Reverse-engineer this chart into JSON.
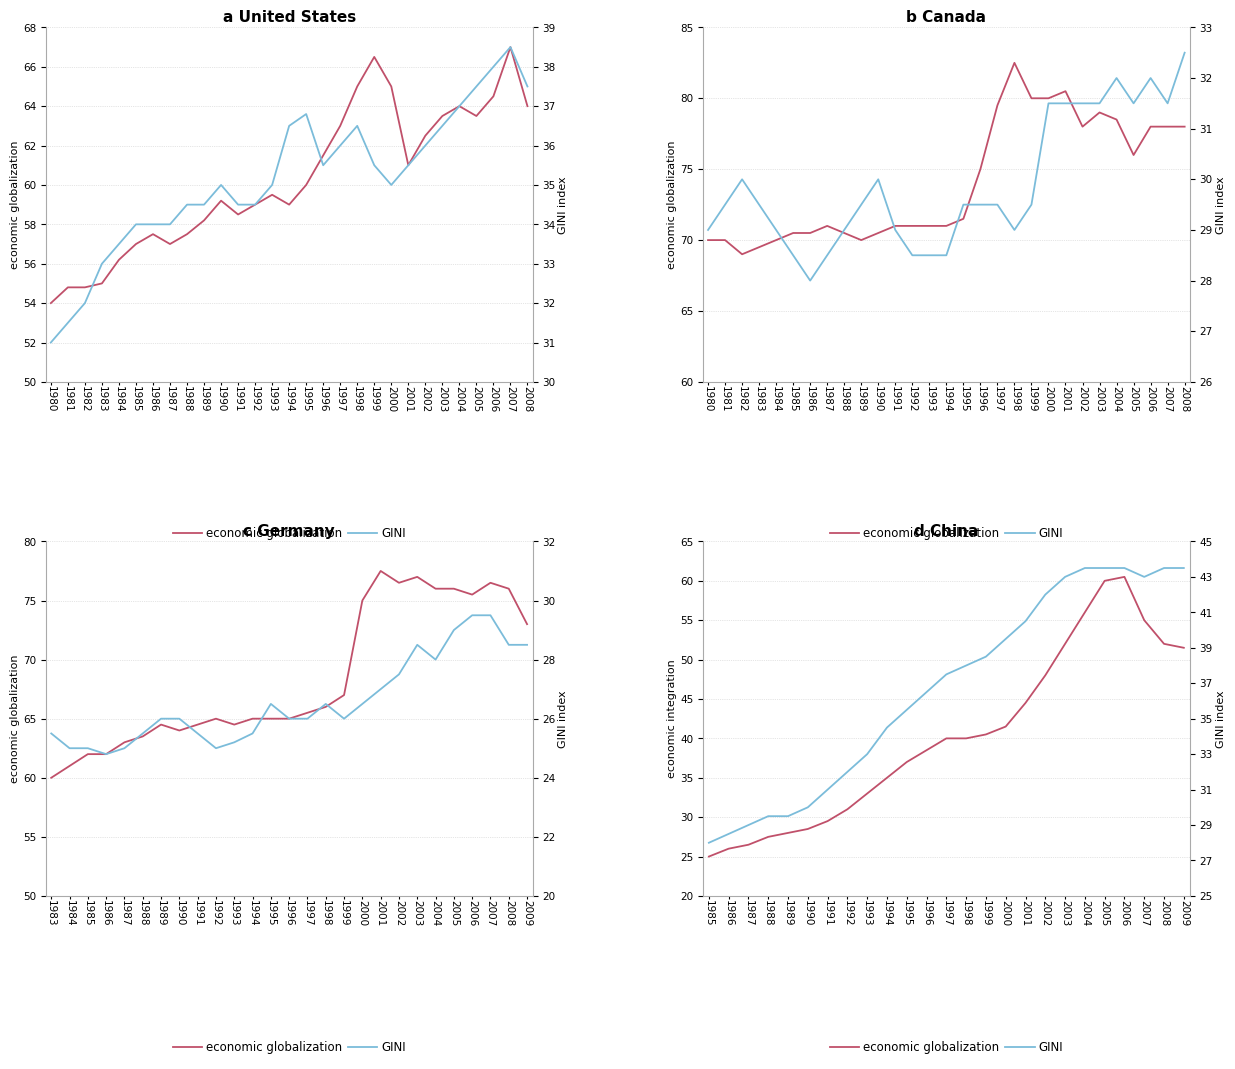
{
  "panels": [
    {
      "title": "a United States",
      "ylabel_left": "economic globalization",
      "ylabel_right": "GINI index",
      "ylim_left": [
        50,
        68
      ],
      "ylim_right": [
        30,
        39
      ],
      "yticks_left": [
        50,
        52,
        54,
        56,
        58,
        60,
        62,
        64,
        66,
        68
      ],
      "yticks_right": [
        30,
        31,
        32,
        33,
        34,
        35,
        36,
        37,
        38,
        39
      ],
      "years": [
        1980,
        1981,
        1982,
        1983,
        1984,
        1985,
        1986,
        1987,
        1988,
        1989,
        1990,
        1991,
        1992,
        1993,
        1994,
        1995,
        1996,
        1997,
        1998,
        1999,
        2000,
        2001,
        2002,
        2003,
        2004,
        2005,
        2006,
        2007,
        2008
      ],
      "glob": [
        54.0,
        54.8,
        54.8,
        55.0,
        56.2,
        57.0,
        57.5,
        57.0,
        57.5,
        58.2,
        59.2,
        58.5,
        59.0,
        59.5,
        59.0,
        60.0,
        61.5,
        63.0,
        65.0,
        66.5,
        65.0,
        61.0,
        62.5,
        63.5,
        64.0,
        63.5,
        64.5,
        67.0,
        64.0
      ],
      "gini": [
        31.0,
        31.5,
        32.0,
        33.0,
        33.5,
        34.0,
        34.0,
        34.0,
        34.5,
        34.5,
        35.0,
        34.5,
        34.5,
        35.0,
        36.5,
        36.8,
        35.5,
        36.0,
        36.5,
        35.5,
        35.0,
        35.5,
        36.0,
        36.5,
        37.0,
        37.5,
        38.0,
        38.5,
        37.5
      ]
    },
    {
      "title": "b Canada",
      "ylabel_left": "economic globalization",
      "ylabel_right": "GINI index",
      "ylim_left": [
        60,
        85
      ],
      "ylim_right": [
        26,
        33
      ],
      "yticks_left": [
        60,
        65,
        70,
        75,
        80,
        85
      ],
      "yticks_right": [
        26,
        27,
        28,
        29,
        30,
        31,
        32,
        33
      ],
      "years": [
        1980,
        1981,
        1982,
        1983,
        1984,
        1985,
        1986,
        1987,
        1988,
        1989,
        1990,
        1991,
        1992,
        1993,
        1994,
        1995,
        1996,
        1997,
        1998,
        1999,
        2000,
        2001,
        2002,
        2003,
        2004,
        2005,
        2006,
        2007,
        2008
      ],
      "glob": [
        70.0,
        70.0,
        69.0,
        69.5,
        70.0,
        70.5,
        70.5,
        71.0,
        70.5,
        70.0,
        70.5,
        71.0,
        71.0,
        71.0,
        71.0,
        71.5,
        75.0,
        79.5,
        82.5,
        80.0,
        80.0,
        80.5,
        78.0,
        79.0,
        78.5,
        76.0,
        78.0,
        78.0,
        78.0
      ],
      "gini": [
        29.0,
        29.5,
        30.0,
        29.5,
        29.0,
        28.5,
        28.0,
        28.5,
        29.0,
        29.5,
        30.0,
        29.0,
        28.5,
        28.5,
        28.5,
        29.5,
        29.5,
        29.5,
        29.0,
        29.5,
        31.5,
        31.5,
        31.5,
        31.5,
        32.0,
        31.5,
        32.0,
        31.5,
        32.5
      ]
    },
    {
      "title": "c Germany",
      "ylabel_left": "economic globalization",
      "ylabel_right": "GINI index",
      "ylim_left": [
        50,
        80
      ],
      "ylim_right": [
        20,
        32
      ],
      "yticks_left": [
        50,
        55,
        60,
        65,
        70,
        75,
        80
      ],
      "yticks_right": [
        20,
        22,
        24,
        26,
        28,
        30,
        32
      ],
      "years": [
        1983,
        1984,
        1985,
        1986,
        1987,
        1988,
        1989,
        1990,
        1991,
        1992,
        1993,
        1994,
        1995,
        1996,
        1997,
        1998,
        1999,
        2000,
        2001,
        2002,
        2003,
        2004,
        2005,
        2006,
        2007,
        2008,
        2009
      ],
      "glob": [
        60.0,
        61.0,
        62.0,
        62.0,
        63.0,
        63.5,
        64.5,
        64.0,
        64.5,
        65.0,
        64.5,
        65.0,
        65.0,
        65.0,
        65.5,
        66.0,
        67.0,
        75.0,
        77.5,
        76.5,
        77.0,
        76.0,
        76.0,
        75.5,
        76.5,
        76.0,
        73.0
      ],
      "gini": [
        25.5,
        25.0,
        25.0,
        24.8,
        25.0,
        25.5,
        26.0,
        26.0,
        25.5,
        25.0,
        25.2,
        25.5,
        26.5,
        26.0,
        26.0,
        26.5,
        26.0,
        26.5,
        27.0,
        27.5,
        28.5,
        28.0,
        29.0,
        29.5,
        29.5,
        28.5,
        28.5
      ]
    },
    {
      "title": "d China",
      "ylabel_left": "economic integration",
      "ylabel_right": "GINI index",
      "ylim_left": [
        20,
        65
      ],
      "ylim_right": [
        25,
        45
      ],
      "yticks_left": [
        20,
        25,
        30,
        35,
        40,
        45,
        50,
        55,
        60,
        65
      ],
      "yticks_right": [
        25,
        27,
        29,
        31,
        33,
        35,
        37,
        39,
        41,
        43,
        45
      ],
      "years": [
        1985,
        1986,
        1987,
        1988,
        1989,
        1990,
        1991,
        1992,
        1993,
        1994,
        1995,
        1996,
        1997,
        1998,
        1999,
        2000,
        2001,
        2002,
        2003,
        2004,
        2005,
        2006,
        2007,
        2008,
        2009
      ],
      "glob": [
        25.0,
        26.0,
        26.5,
        27.5,
        28.0,
        28.5,
        29.5,
        31.0,
        33.0,
        35.0,
        37.0,
        38.5,
        40.0,
        40.0,
        40.5,
        41.5,
        44.5,
        48.0,
        52.0,
        56.0,
        60.0,
        60.5,
        55.0,
        52.0,
        51.5
      ],
      "gini": [
        28.0,
        28.5,
        29.0,
        29.5,
        29.5,
        30.0,
        31.0,
        32.0,
        33.0,
        34.5,
        35.5,
        36.5,
        37.5,
        38.0,
        38.5,
        39.5,
        40.5,
        42.0,
        43.0,
        43.5,
        43.5,
        43.5,
        43.0,
        43.5,
        43.5
      ]
    }
  ],
  "line_color_glob": "#c0506a",
  "line_color_gini": "#7bbcda",
  "legend_glob": "economic globalization",
  "legend_gini": "GINI",
  "background_color": "#ffffff",
  "font_size_title": 11,
  "font_size_label": 8,
  "font_size_tick": 7.5,
  "font_size_legend": 8.5,
  "line_width": 1.3
}
